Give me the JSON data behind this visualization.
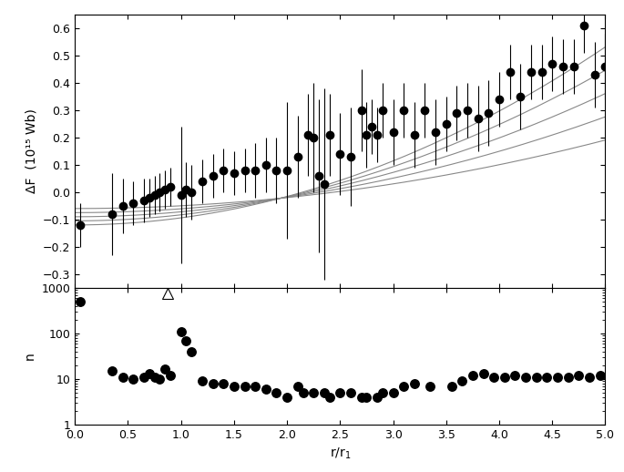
{
  "top_panel": {
    "ylabel": "ΔF  (10¹⁵ Wb)",
    "ylim": [
      -0.35,
      0.65
    ],
    "yticks": [
      -0.3,
      -0.2,
      -0.1,
      0.0,
      0.1,
      0.2,
      0.3,
      0.4,
      0.5,
      0.6
    ],
    "xlim": [
      0,
      5
    ],
    "scatter_x": [
      0.05,
      0.35,
      0.45,
      0.55,
      0.65,
      0.7,
      0.75,
      0.8,
      0.85,
      0.9,
      1.0,
      1.05,
      1.1,
      1.2,
      1.3,
      1.4,
      1.5,
      1.6,
      1.7,
      1.8,
      1.9,
      2.0,
      2.1,
      2.2,
      2.25,
      2.3,
      2.35,
      2.4,
      2.5,
      2.6,
      2.7,
      2.75,
      2.8,
      2.85,
      2.9,
      3.0,
      3.1,
      3.2,
      3.3,
      3.4,
      3.5,
      3.6,
      3.7,
      3.8,
      3.9,
      4.0,
      4.1,
      4.2,
      4.3,
      4.4,
      4.5,
      4.6,
      4.7,
      4.8,
      4.9,
      5.0
    ],
    "scatter_y": [
      -0.12,
      -0.08,
      -0.05,
      -0.04,
      -0.03,
      -0.02,
      -0.01,
      0.0,
      0.01,
      0.02,
      -0.01,
      0.01,
      0.0,
      0.04,
      0.06,
      0.08,
      0.07,
      0.08,
      0.08,
      0.1,
      0.08,
      0.08,
      0.13,
      0.21,
      0.2,
      0.06,
      0.03,
      0.21,
      0.14,
      0.13,
      0.3,
      0.21,
      0.24,
      0.21,
      0.3,
      0.22,
      0.3,
      0.21,
      0.3,
      0.22,
      0.25,
      0.29,
      0.3,
      0.27,
      0.29,
      0.34,
      0.44,
      0.35,
      0.44,
      0.44,
      0.47,
      0.46,
      0.46,
      0.61,
      0.43,
      0.46
    ],
    "scatter_yerr": [
      0.08,
      0.15,
      0.1,
      0.08,
      0.08,
      0.07,
      0.07,
      0.07,
      0.07,
      0.07,
      0.25,
      0.1,
      0.1,
      0.08,
      0.08,
      0.08,
      0.08,
      0.08,
      0.1,
      0.1,
      0.12,
      0.25,
      0.15,
      0.15,
      0.2,
      0.28,
      0.35,
      0.15,
      0.15,
      0.18,
      0.15,
      0.12,
      0.1,
      0.1,
      0.1,
      0.12,
      0.1,
      0.12,
      0.1,
      0.12,
      0.1,
      0.1,
      0.1,
      0.12,
      0.12,
      0.1,
      0.1,
      0.12,
      0.1,
      0.1,
      0.1,
      0.1,
      0.1,
      0.1,
      0.12,
      0.12
    ],
    "curves": [
      {
        "a": 0.026,
        "b": -0.12
      },
      {
        "a": 0.022,
        "b": -0.105
      },
      {
        "a": 0.018,
        "b": -0.09
      },
      {
        "a": 0.014,
        "b": -0.075
      },
      {
        "a": 0.01,
        "b": -0.06
      }
    ],
    "line_color": "#888888"
  },
  "bottom_panel": {
    "ylabel": "n",
    "ylim_log": [
      1,
      1000
    ],
    "xlim": [
      0,
      5
    ],
    "yticks": [
      1,
      10,
      100,
      1000
    ],
    "scatter_x": [
      0.05,
      0.35,
      0.45,
      0.55,
      0.65,
      0.7,
      0.75,
      0.8,
      0.85,
      0.9,
      1.0,
      1.05,
      1.1,
      1.2,
      1.3,
      1.4,
      1.5,
      1.6,
      1.7,
      1.8,
      1.9,
      2.0,
      2.1,
      2.15,
      2.25,
      2.35,
      2.4,
      2.5,
      2.6,
      2.7,
      2.75,
      2.85,
      2.9,
      3.0,
      3.1,
      3.2,
      3.35,
      3.55,
      3.65,
      3.75,
      3.85,
      3.95,
      4.05,
      4.15,
      4.25,
      4.35,
      4.45,
      4.55,
      4.65,
      4.75,
      4.85,
      4.95
    ],
    "scatter_y": [
      500,
      15,
      11,
      10,
      11,
      13,
      11,
      10,
      17,
      12,
      110,
      70,
      40,
      9,
      8,
      8,
      7,
      7,
      7,
      6,
      5,
      4,
      7,
      5,
      5,
      5,
      4,
      5,
      5,
      4,
      4,
      4,
      5,
      5,
      7,
      8,
      7,
      7,
      9,
      12,
      13,
      11,
      11,
      12,
      11,
      11,
      11,
      11,
      11,
      12,
      11,
      12
    ],
    "triangle_x": 0.87,
    "triangle_y": 750,
    "triangle_color": "none",
    "triangle_edge_color": "black"
  },
  "xlabel": "r/r$_1$",
  "background_color": "white",
  "text_color": "black",
  "marker_color": "black",
  "marker_size": 6,
  "elinewidth": 0.8,
  "capsize": 0
}
